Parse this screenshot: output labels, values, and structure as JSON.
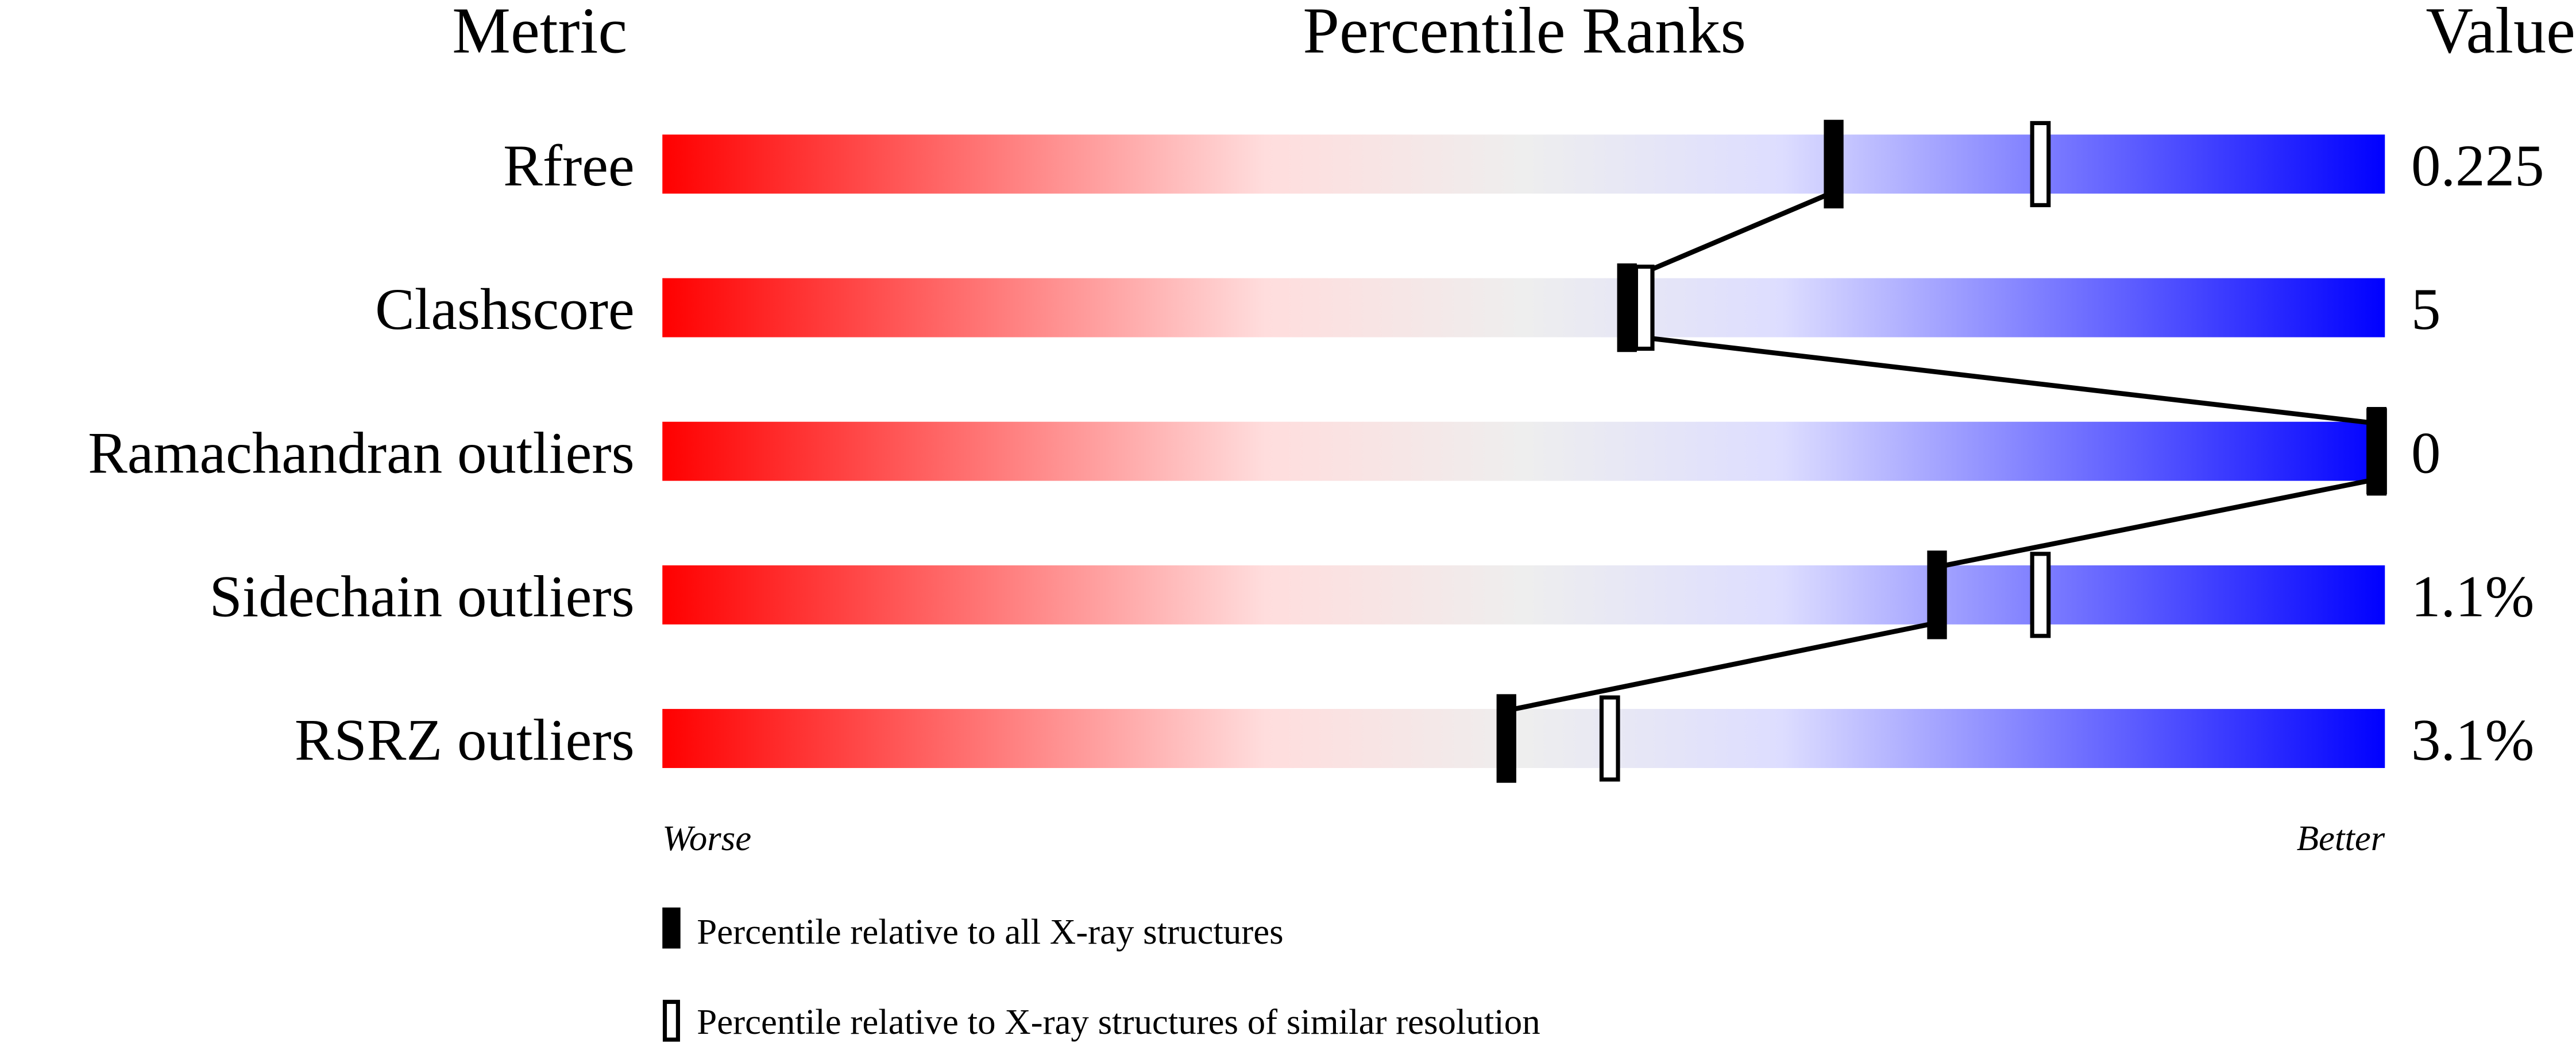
{
  "chart_data": {
    "type": "percentile-bar",
    "headers": {
      "metric": "Metric",
      "ranks": "Percentile Ranks",
      "value": "Value"
    },
    "xlim": [
      0,
      100
    ],
    "metrics": [
      {
        "name": "Rfree",
        "value": "0.225",
        "percentile_all": 68,
        "percentile_similar": 80
      },
      {
        "name": "Clashscore",
        "value": "5",
        "percentile_all": 56,
        "percentile_similar": 57
      },
      {
        "name": "Ramachandran outliers",
        "value": "0",
        "percentile_all": 100,
        "percentile_similar": 100
      },
      {
        "name": "Sidechain outliers",
        "value": "1.1%",
        "percentile_all": 74,
        "percentile_similar": 80
      },
      {
        "name": "RSRZ outliers",
        "value": "3.1%",
        "percentile_all": 49,
        "percentile_similar": 55
      }
    ],
    "axis_labels": {
      "left": "Worse",
      "right": "Better"
    },
    "legend": {
      "all": "Percentile relative to all X-ray structures",
      "similar": "Percentile relative to X-ray structures of similar resolution"
    },
    "colors": {
      "worse": "#ff0000",
      "middle": "#eeeeee",
      "better": "#0000ff",
      "marker": "#000000"
    }
  }
}
